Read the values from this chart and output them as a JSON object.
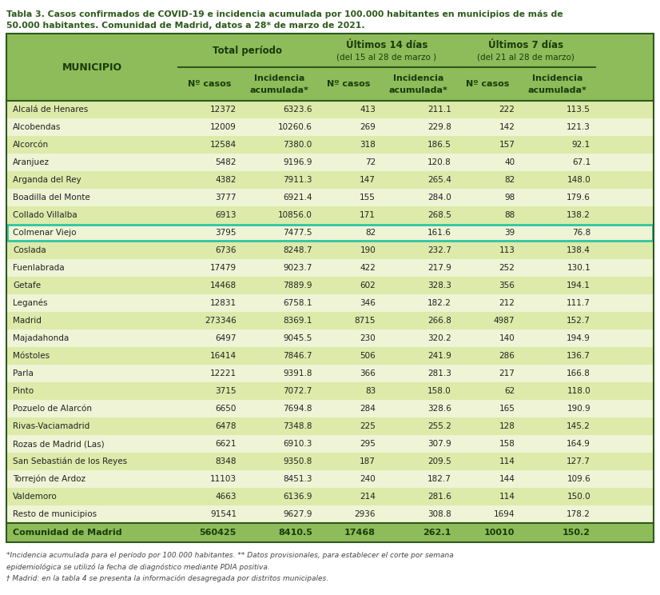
{
  "title_line1": "Tabla 3. Casos confirmados de COVID-19 e incidencia acumulada por 100.000 habitantes en municipios de más de",
  "title_line2": "50.000 habitantes. Comunidad de Madrid, datos a 28* de marzo de 2021.",
  "header_bg": "#8fbc5a",
  "row_bg_even": "#ddeaaa",
  "row_bg_odd": "#eef4d5",
  "footer_bg": "#8fbc5a",
  "highlight_row": "Colmenar Viejo",
  "highlight_border": "#2dc4a0",
  "rows": [
    [
      "Alcalá de Henares",
      "12372",
      "6323.6",
      "413",
      "211.1",
      "222",
      "113.5"
    ],
    [
      "Alcobendas",
      "12009",
      "10260.6",
      "269",
      "229.8",
      "142",
      "121.3"
    ],
    [
      "Alcorcón",
      "12584",
      "7380.0",
      "318",
      "186.5",
      "157",
      "92.1"
    ],
    [
      "Aranjuez",
      "5482",
      "9196.9",
      "72",
      "120.8",
      "40",
      "67.1"
    ],
    [
      "Arganda del Rey",
      "4382",
      "7911.3",
      "147",
      "265.4",
      "82",
      "148.0"
    ],
    [
      "Boadilla del Monte",
      "3777",
      "6921.4",
      "155",
      "284.0",
      "98",
      "179.6"
    ],
    [
      "Collado Villalba",
      "6913",
      "10856.0",
      "171",
      "268.5",
      "88",
      "138.2"
    ],
    [
      "Colmenar Viejo",
      "3795",
      "7477.5",
      "82",
      "161.6",
      "39",
      "76.8"
    ],
    [
      "Coslada",
      "6736",
      "8248.7",
      "190",
      "232.7",
      "113",
      "138.4"
    ],
    [
      "Fuenlabrada",
      "17479",
      "9023.7",
      "422",
      "217.9",
      "252",
      "130.1"
    ],
    [
      "Getafe",
      "14468",
      "7889.9",
      "602",
      "328.3",
      "356",
      "194.1"
    ],
    [
      "Leganés",
      "12831",
      "6758.1",
      "346",
      "182.2",
      "212",
      "111.7"
    ],
    [
      "Madrid",
      "273346",
      "8369.1",
      "8715",
      "266.8",
      "4987",
      "152.7"
    ],
    [
      "Majadahonda",
      "6497",
      "9045.5",
      "230",
      "320.2",
      "140",
      "194.9"
    ],
    [
      "Móstoles",
      "16414",
      "7846.7",
      "506",
      "241.9",
      "286",
      "136.7"
    ],
    [
      "Parla",
      "12221",
      "9391.8",
      "366",
      "281.3",
      "217",
      "166.8"
    ],
    [
      "Pinto",
      "3715",
      "7072.7",
      "83",
      "158.0",
      "62",
      "118.0"
    ],
    [
      "Pozuelo de Alarcón",
      "6650",
      "7694.8",
      "284",
      "328.6",
      "165",
      "190.9"
    ],
    [
      "Rivas-Vaciamadrid",
      "6478",
      "7348.8",
      "225",
      "255.2",
      "128",
      "145.2"
    ],
    [
      "Rozas de Madrid (Las)",
      "6621",
      "6910.3",
      "295",
      "307.9",
      "158",
      "164.9"
    ],
    [
      "San Sebastián de los Reyes",
      "8348",
      "9350.8",
      "187",
      "209.5",
      "114",
      "127.7"
    ],
    [
      "Torrejón de Ardoz",
      "11103",
      "8451.3",
      "240",
      "182.7",
      "144",
      "109.6"
    ],
    [
      "Valdemoro",
      "4663",
      "6136.9",
      "214",
      "281.6",
      "114",
      "150.0"
    ],
    [
      "Resto de municipios",
      "91541",
      "9627.9",
      "2936",
      "308.8",
      "1694",
      "178.2"
    ]
  ],
  "footer_row": [
    "Comunidad de Madrid",
    "560425",
    "8410.5",
    "17468",
    "262.1",
    "10010",
    "150.2"
  ],
  "footnote1": "*Incidencia acumulada para el período por 100.000 habitantes. ** Datos provisionales, para establecer el corte por semana",
  "footnote2": "epidemiológica se utilizó la fecha de diagnóstico mediante PDIA positiva.",
  "footnote3": "† Madrid: en la tabla 4 se presenta la información desagregada por distritos municipales."
}
